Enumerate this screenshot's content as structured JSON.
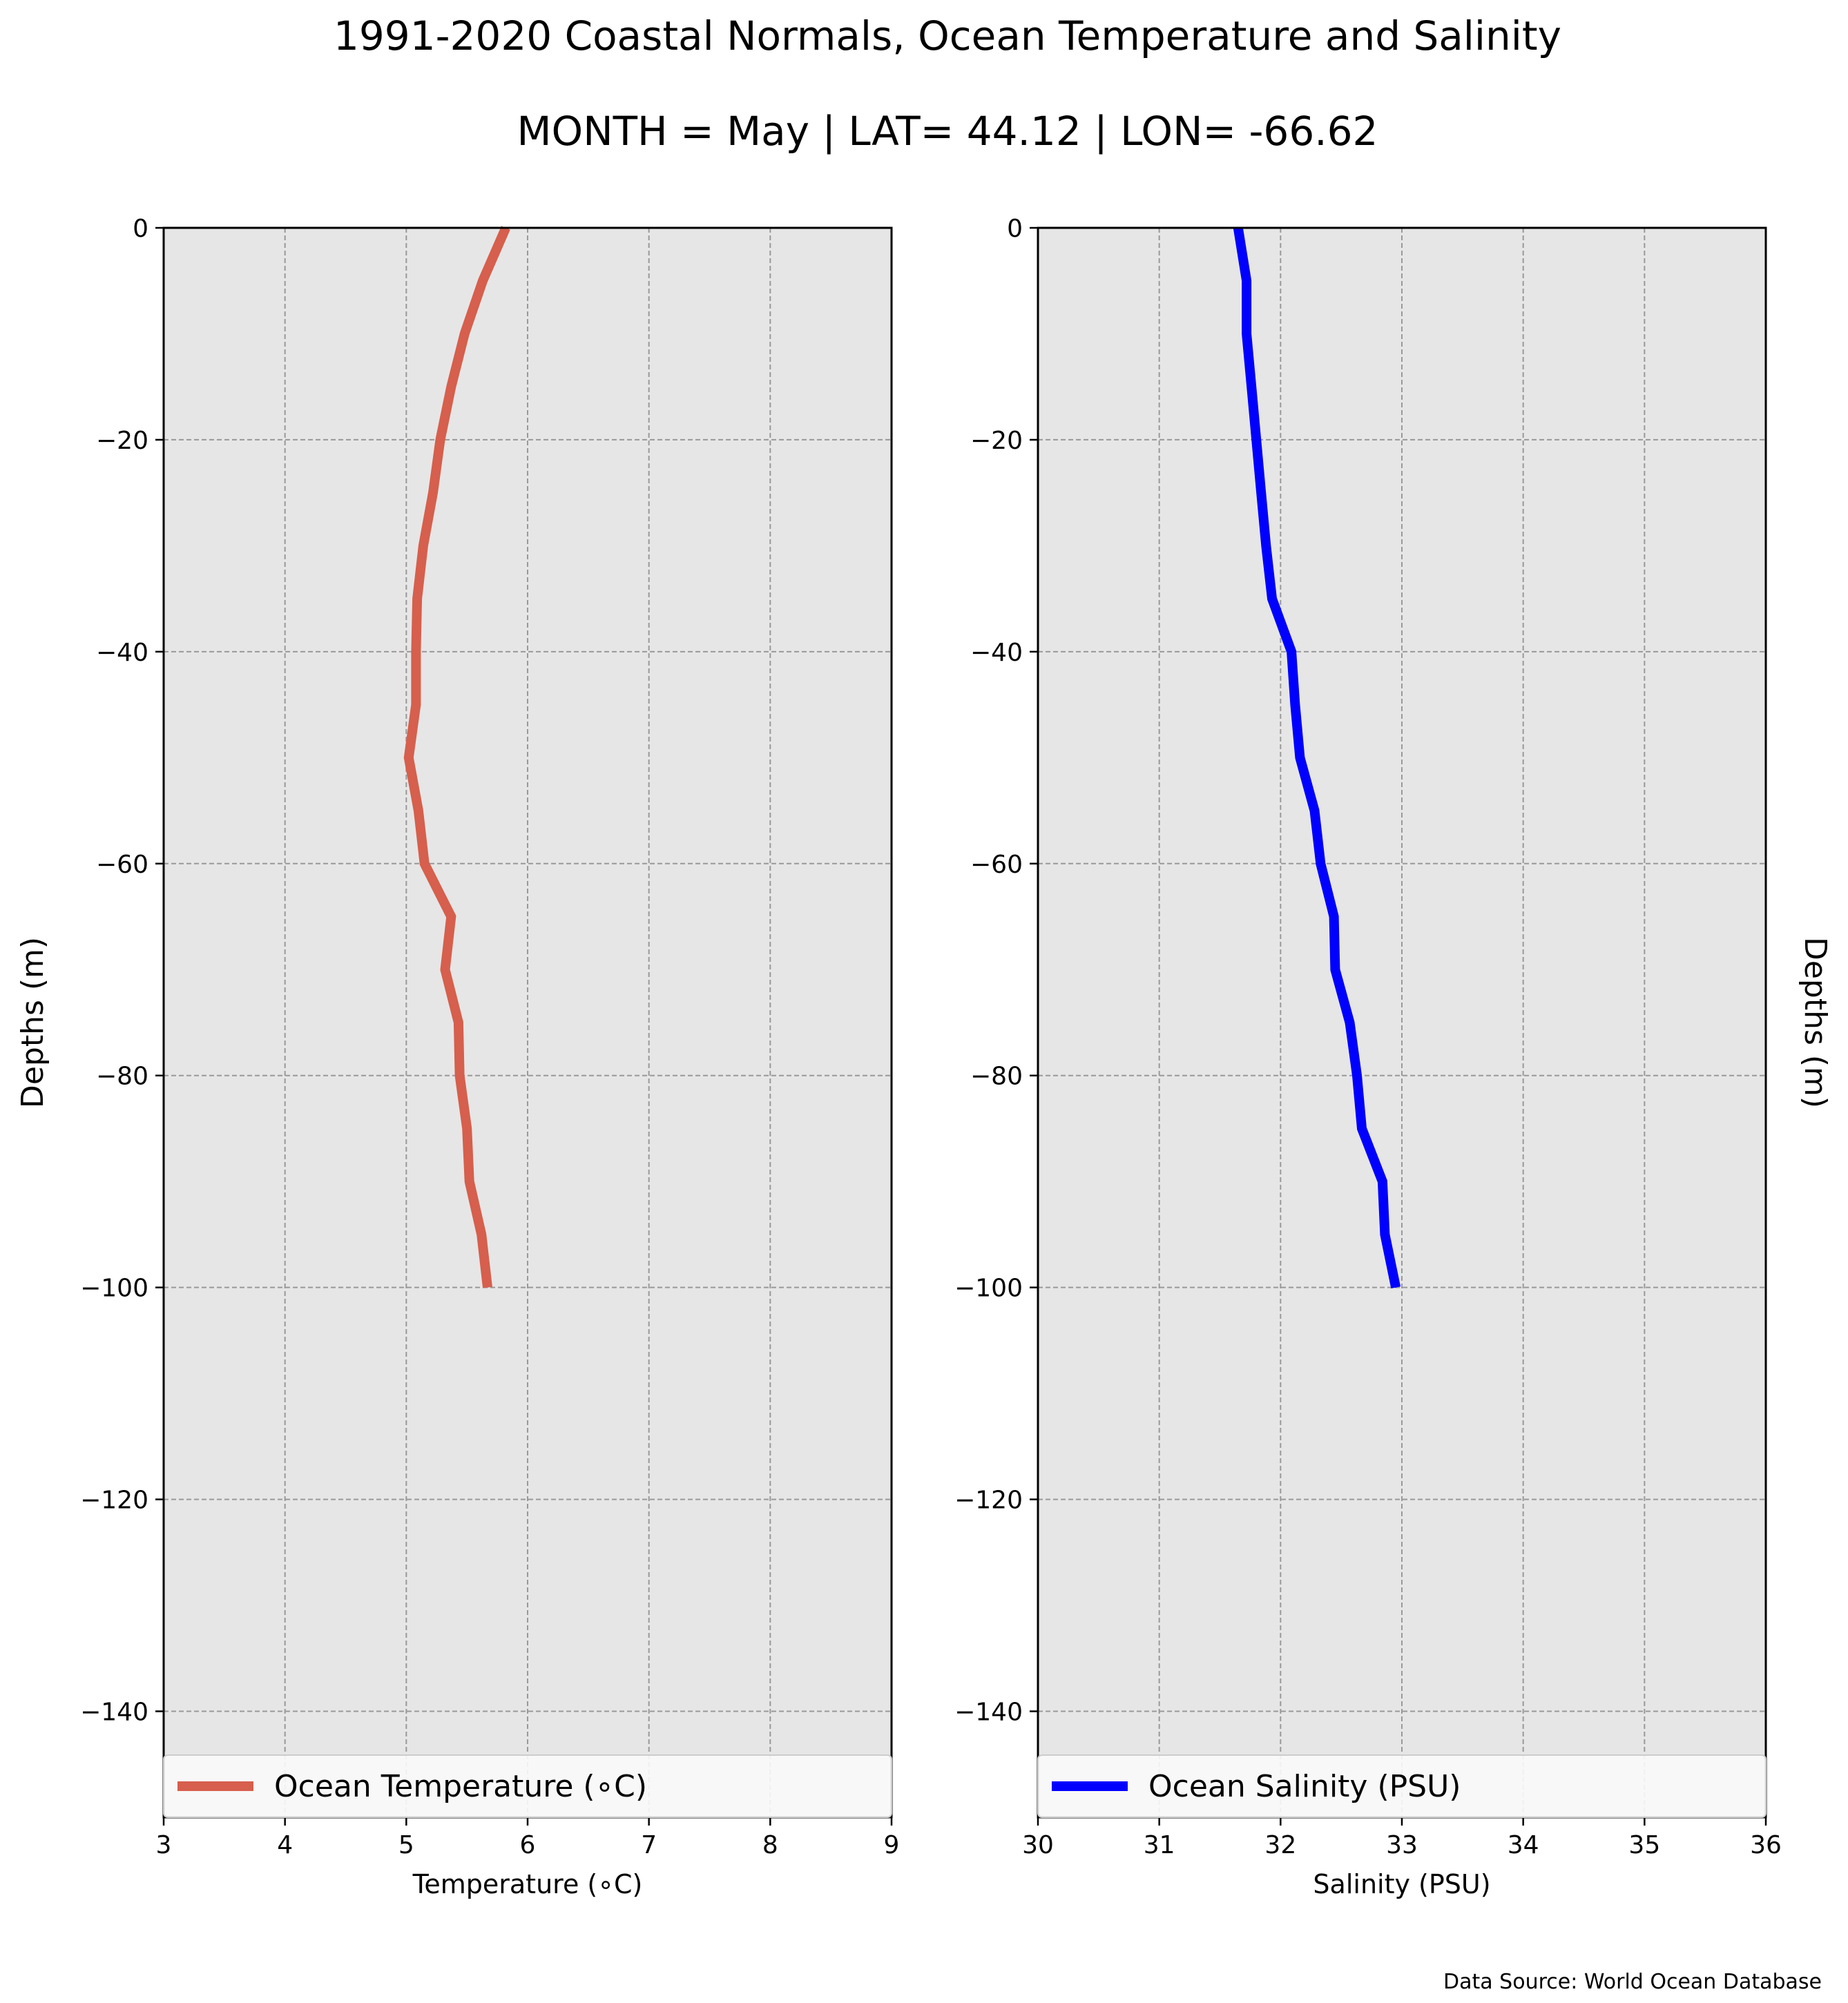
{
  "title": "1991-2020 Coastal Normals, Ocean Temperature and Salinity",
  "subtitle": "MONTH = May | LAT= 44.12 | LON= -66.62",
  "footer": "Data Source: World Ocean Database",
  "colors": {
    "plot_background": "#e6e6e6",
    "grid": "#999999",
    "temperature_line": "#d65f4d",
    "salinity_line": "#0000ff"
  },
  "chart_data": [
    {
      "type": "line",
      "id": "temperature",
      "xlabel": "Temperature (∘C)",
      "ylabel": "Depths (m)",
      "ylabel_side": "left",
      "xlim": [
        3,
        9
      ],
      "ylim": [
        -150,
        0
      ],
      "xticks": [
        3,
        4,
        5,
        6,
        7,
        8,
        9
      ],
      "yticks": [
        0,
        -20,
        -40,
        -60,
        -80,
        -100,
        -120,
        -140
      ],
      "grid": true,
      "legend": "bottom",
      "series": [
        {
          "name": "Ocean Temperature (∘C)",
          "color": "#d65f4d",
          "x": [
            5.82,
            5.63,
            5.48,
            5.37,
            5.28,
            5.22,
            5.14,
            5.09,
            5.08,
            5.08,
            5.02,
            5.1,
            5.15,
            5.37,
            5.32,
            5.43,
            5.44,
            5.5,
            5.52,
            5.62,
            5.67
          ],
          "y": [
            0,
            -5,
            -10,
            -15,
            -20,
            -25,
            -30,
            -35,
            -40,
            -45,
            -50,
            -55,
            -60,
            -65,
            -70,
            -75,
            -80,
            -85,
            -90,
            -95,
            -100
          ]
        }
      ]
    },
    {
      "type": "line",
      "id": "salinity",
      "xlabel": "Salinity (PSU)",
      "ylabel": "Depths (m)",
      "ylabel_side": "right",
      "xlim": [
        30,
        36
      ],
      "ylim": [
        -150,
        0
      ],
      "xticks": [
        30,
        31,
        32,
        33,
        34,
        35,
        36
      ],
      "yticks": [
        0,
        -20,
        -40,
        -60,
        -80,
        -100,
        -120,
        -140
      ],
      "grid": true,
      "legend": "bottom",
      "series": [
        {
          "name": "Ocean Salinity (PSU)",
          "color": "#0000ff",
          "x": [
            31.65,
            31.72,
            31.72,
            31.76,
            31.8,
            31.84,
            31.88,
            31.93,
            32.09,
            32.12,
            32.16,
            32.28,
            32.33,
            32.44,
            32.45,
            32.57,
            32.63,
            32.67,
            32.84,
            32.86,
            32.95
          ],
          "y": [
            0,
            -5,
            -10,
            -15,
            -20,
            -25,
            -30,
            -35,
            -40,
            -45,
            -50,
            -55,
            -60,
            -65,
            -70,
            -75,
            -80,
            -85,
            -90,
            -95,
            -100
          ]
        }
      ]
    }
  ]
}
